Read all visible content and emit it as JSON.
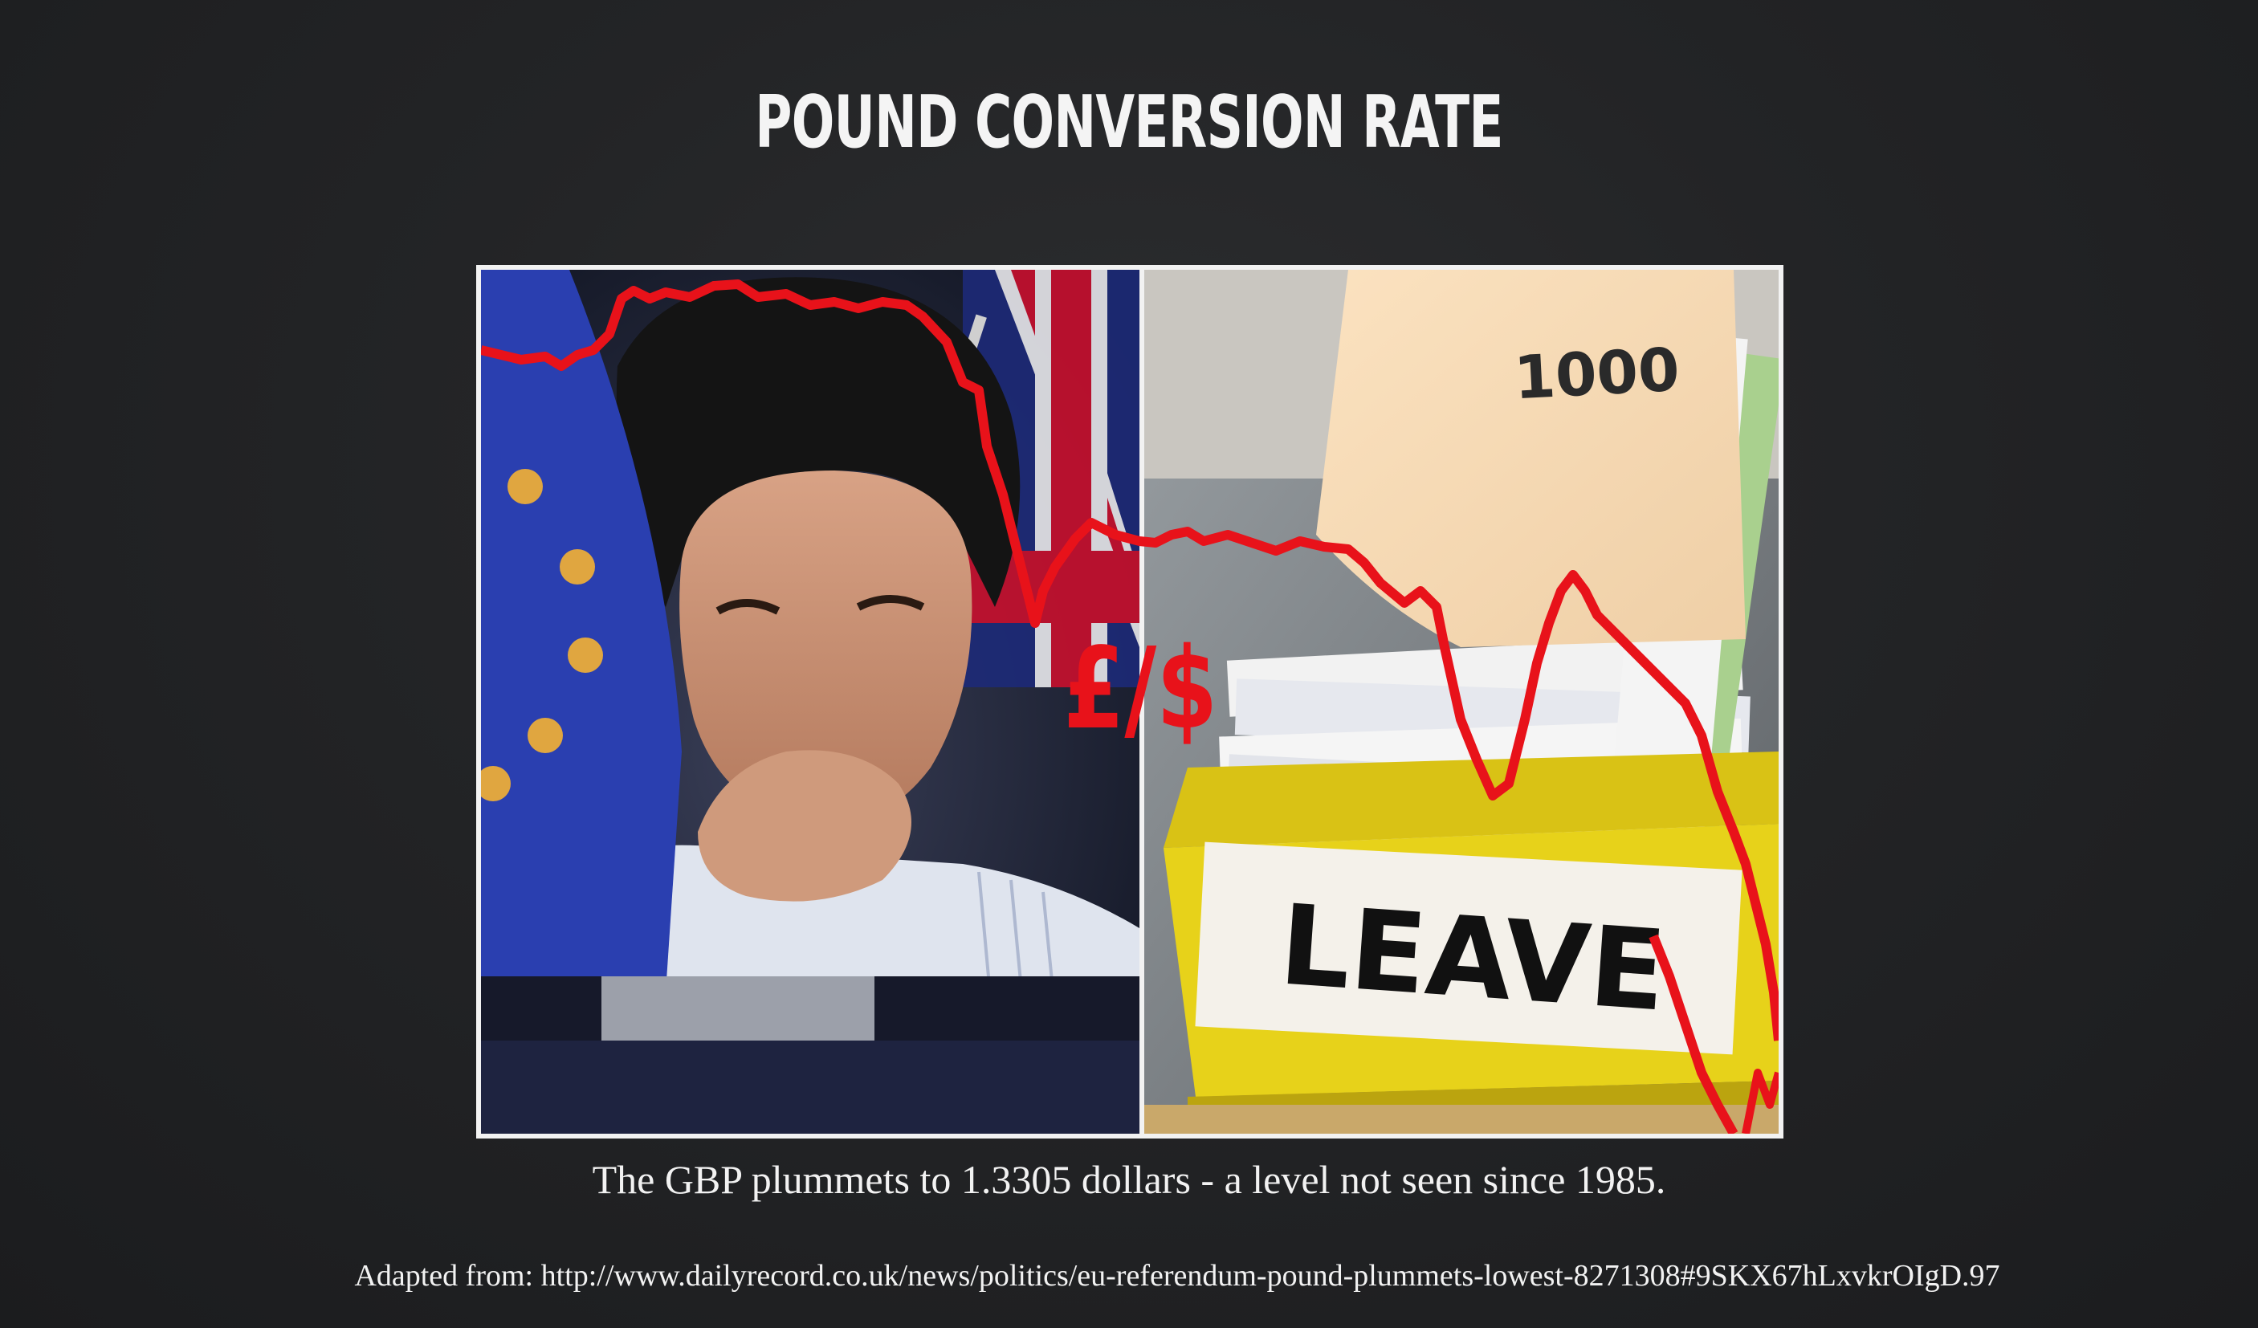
{
  "slide": {
    "title": "POUND CONVERSION RATE",
    "caption": "The GBP plummets to 1.3305 dollars - a level not seen since 1985.",
    "source": "Adapted from: http://www.dailyrecord.co.uk/news/politics/eu-referendum-pound-plummets-lowest-8271308#9SKX67hLxvkrOIgD.97"
  },
  "photo": {
    "currency_label": "£/$",
    "folder_number": "1000",
    "box_label": "LEAVE"
  },
  "colors": {
    "background": "#232426",
    "text": "#f2f2f2",
    "chart_line": "#e8121a",
    "eu_blue": "#2a3fb0",
    "box_yellow": "#e7d21a"
  }
}
